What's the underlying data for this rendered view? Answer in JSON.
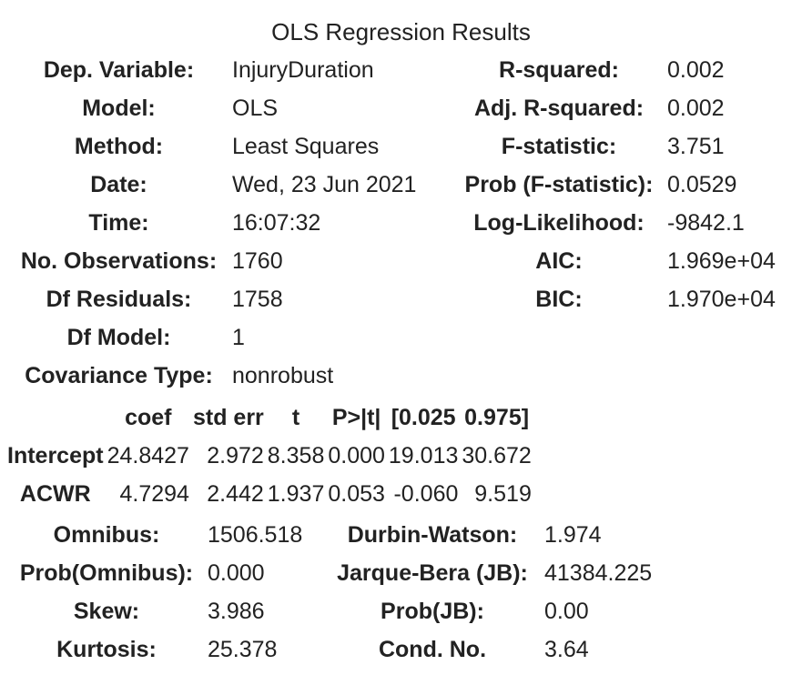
{
  "title": "OLS Regression Results",
  "summary": {
    "rows": [
      {
        "l1": "Dep. Variable:",
        "v1": "InjuryDuration",
        "l2": "R-squared:",
        "v2": "0.002"
      },
      {
        "l1": "Model:",
        "v1": "OLS",
        "l2": "Adj. R-squared:",
        "v2": "0.002"
      },
      {
        "l1": "Method:",
        "v1": "Least Squares",
        "l2": "F-statistic:",
        "v2": "3.751"
      },
      {
        "l1": "Date:",
        "v1": "Wed, 23 Jun 2021",
        "l2": "Prob (F-statistic):",
        "v2": "0.0529"
      },
      {
        "l1": "Time:",
        "v1": "16:07:32",
        "l2": "Log-Likelihood:",
        "v2": "-9842.1"
      },
      {
        "l1": "No. Observations:",
        "v1": "1760",
        "l2": "AIC:",
        "v2": "1.969e+04"
      },
      {
        "l1": "Df Residuals:",
        "v1": "1758",
        "l2": "BIC:",
        "v2": "1.970e+04"
      },
      {
        "l1": "Df Model:",
        "v1": "1",
        "l2": "",
        "v2": ""
      },
      {
        "l1": "Covariance Type:",
        "v1": "nonrobust",
        "l2": "",
        "v2": ""
      }
    ]
  },
  "coefficients": {
    "headers": [
      "",
      "coef",
      "std err",
      "t",
      "P>|t|",
      "[0.025",
      "0.975]"
    ],
    "rows": [
      {
        "name": "Intercept",
        "values": [
          "24.8427",
          "2.972",
          "8.358",
          "0.000",
          "19.013",
          "30.672"
        ]
      },
      {
        "name": "ACWR",
        "values": [
          "4.7294",
          "2.442",
          "1.937",
          "0.053",
          "-0.060",
          "9.519"
        ]
      }
    ]
  },
  "diagnostics": {
    "rows": [
      {
        "l1": "Omnibus:",
        "v1": "1506.518",
        "l2": "Durbin-Watson:",
        "v2": "1.974"
      },
      {
        "l1": "Prob(Omnibus):",
        "v1": "0.000",
        "l2": "Jarque-Bera (JB):",
        "v2": "41384.225"
      },
      {
        "l1": "Skew:",
        "v1": "3.986",
        "l2": "Prob(JB):",
        "v2": "0.00"
      },
      {
        "l1": "Kurtosis:",
        "v1": "25.378",
        "l2": "Cond. No.",
        "v2": "3.64"
      }
    ]
  }
}
